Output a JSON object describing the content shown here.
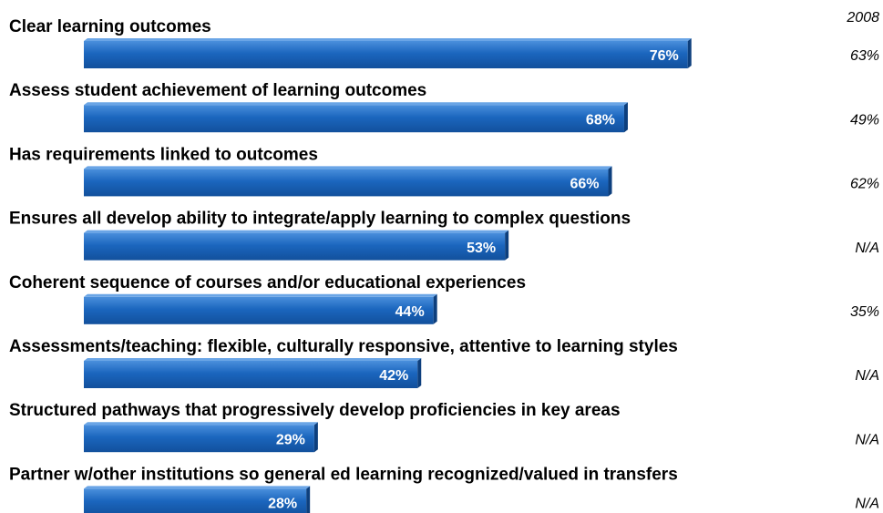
{
  "chart_data": {
    "type": "barh",
    "categories": [
      "Clear learning outcomes",
      "Assess student achievement of learning outcomes",
      "Has requirements linked to outcomes",
      "Ensures all develop ability to integrate/apply learning to complex questions",
      "Coherent sequence of courses and/or educational experiences",
      "Assessments/teaching: flexible, culturally responsive, attentive to learning styles",
      "Structured pathways that progressively develop proficiencies in key areas",
      "Partner w/other institutions so general ed learning recognized/valued in transfers"
    ],
    "values": [
      76,
      68,
      66,
      53,
      44,
      42,
      29,
      28
    ],
    "value_labels": [
      "76%",
      "68%",
      "66%",
      "53%",
      "44%",
      "42%",
      "29%",
      "28%"
    ],
    "color": "#1b66be",
    "xlim": [
      0,
      100
    ],
    "comparison": {
      "title": "2008",
      "values": [
        63,
        49,
        62,
        null,
        35,
        null,
        null,
        null
      ],
      "value_labels": [
        "63%",
        "49%",
        "62%",
        "N/A",
        "35%",
        "N/A",
        "N/A",
        "N/A"
      ]
    }
  }
}
